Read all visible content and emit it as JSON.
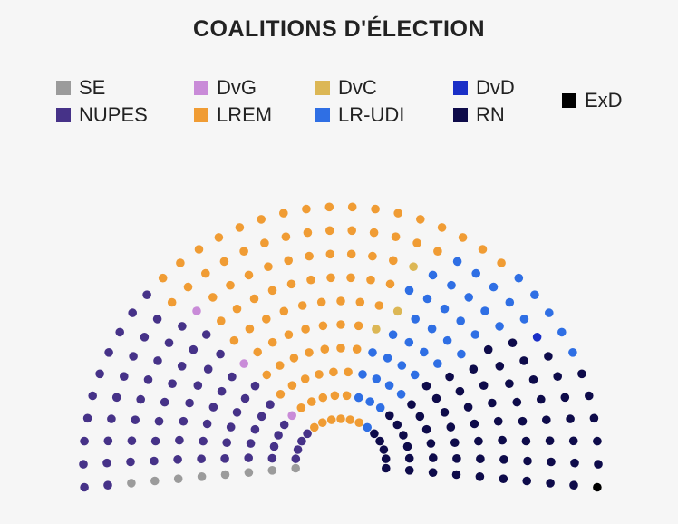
{
  "chart_data": {
    "type": "parliament",
    "title": "COALITIONS D'ÉLECTION",
    "legend": [
      {
        "key": "SE",
        "label": "SE",
        "color": "#9b9b9b"
      },
      {
        "key": "DvG",
        "label": "DvG",
        "color": "#c98bd8"
      },
      {
        "key": "DvC",
        "label": "DvC",
        "color": "#dcb755"
      },
      {
        "key": "DvD",
        "label": "DvD",
        "color": "#1a2fc7"
      },
      {
        "key": "NUPES",
        "label": "NUPES",
        "color": "#463288"
      },
      {
        "key": "LREM",
        "label": "LREM",
        "color": "#f09c34"
      },
      {
        "key": "LR-UDI",
        "label": "LR-UDI",
        "color": "#2f6fe4"
      },
      {
        "key": "RN",
        "label": "RN",
        "color": "#0e0b4a"
      },
      {
        "key": "ExD",
        "label": "ExD",
        "color": "#000000"
      }
    ],
    "rows": [
      {
        "seats": 17,
        "groups": [
          [
            "SE",
            1
          ],
          [
            "NUPES",
            4
          ],
          [
            "LREM",
            6
          ],
          [
            "LR-UDI",
            1
          ],
          [
            "RN",
            5
          ]
        ]
      },
      {
        "seats": 20,
        "groups": [
          [
            "SE",
            1
          ],
          [
            "NUPES",
            4
          ],
          [
            "DvG",
            1
          ],
          [
            "LREM",
            5
          ],
          [
            "LR-UDI",
            3
          ],
          [
            "RN",
            6
          ]
        ]
      },
      {
        "seats": 22,
        "groups": [
          [
            "SE",
            1
          ],
          [
            "NUPES",
            5
          ],
          [
            "LREM",
            6
          ],
          [
            "LR-UDI",
            4
          ],
          [
            "RN",
            6
          ]
        ]
      },
      {
        "seats": 25,
        "groups": [
          [
            "SE",
            1
          ],
          [
            "NUPES",
            6
          ],
          [
            "LREM",
            7
          ],
          [
            "LR-UDI",
            4
          ],
          [
            "RN",
            7
          ]
        ]
      },
      {
        "seats": 27,
        "groups": [
          [
            "SE",
            1
          ],
          [
            "NUPES",
            6
          ],
          [
            "DvG",
            1
          ],
          [
            "LREM",
            7
          ],
          [
            "DvC",
            1
          ],
          [
            "LR-UDI",
            4
          ],
          [
            "RN",
            7
          ]
        ]
      },
      {
        "seats": 29,
        "groups": [
          [
            "SE",
            1
          ],
          [
            "NUPES",
            7
          ],
          [
            "LREM",
            9
          ],
          [
            "DvC",
            1
          ],
          [
            "LR-UDI",
            4
          ],
          [
            "RN",
            7
          ]
        ]
      },
      {
        "seats": 32,
        "groups": [
          [
            "SE",
            1
          ],
          [
            "NUPES",
            8
          ],
          [
            "LREM",
            10
          ],
          [
            "LR-UDI",
            5
          ],
          [
            "RN",
            8
          ]
        ]
      },
      {
        "seats": 34,
        "groups": [
          [
            "SE",
            1
          ],
          [
            "NUPES",
            8
          ],
          [
            "DvG",
            1
          ],
          [
            "LREM",
            10
          ],
          [
            "DvC",
            1
          ],
          [
            "LR-UDI",
            5
          ],
          [
            "RN",
            8
          ]
        ]
      },
      {
        "seats": 36,
        "groups": [
          [
            "NUPES",
            9
          ],
          [
            "LREM",
            14
          ],
          [
            "LR-UDI",
            5
          ],
          [
            "DvD",
            1
          ],
          [
            "RN",
            7
          ]
        ]
      },
      {
        "seats": 38,
        "groups": [
          [
            "NUPES",
            10
          ],
          [
            "LREM",
            17
          ],
          [
            "LR-UDI",
            5
          ],
          [
            "RN",
            5
          ],
          [
            "ExD",
            1
          ]
        ]
      }
    ]
  }
}
